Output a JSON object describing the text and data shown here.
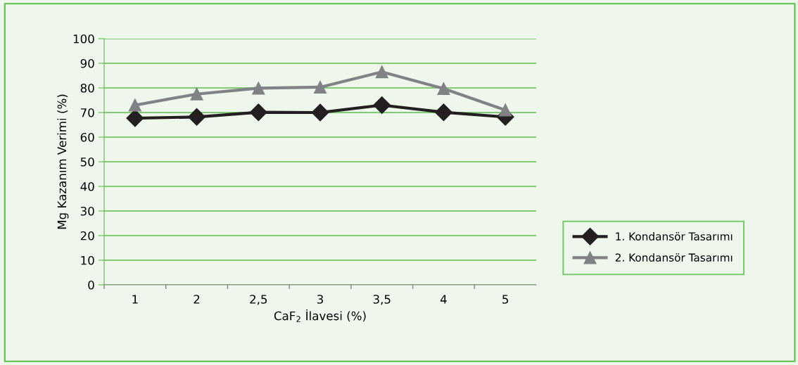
{
  "chart_data": {
    "type": "line",
    "xlabel": "CaF$_{2}$ İlavesi (%)",
    "ylabel": "Mg Kazanım Verimi (%)",
    "categories": [
      "1",
      "2",
      "2,5",
      "3",
      "3,5",
      "4",
      "5"
    ],
    "series": [
      {
        "name": "1. Kondansör Tasarımı",
        "color": "#231f20",
        "marker": "diamond",
        "values": [
          67.7,
          68.2,
          70.1,
          70,
          73,
          70.1,
          68.2
        ]
      },
      {
        "name": "2. Kondansör Tasarımı",
        "color": "#808285",
        "marker": "triangle",
        "values": [
          73,
          77.5,
          79.9,
          80.3,
          86.5,
          79.7,
          71
        ]
      }
    ],
    "ylim": [
      0,
      100
    ],
    "yticks": [
      0,
      10,
      20,
      30,
      40,
      50,
      60,
      70,
      80,
      90,
      100
    ],
    "grid": "y",
    "legend": "right"
  }
}
